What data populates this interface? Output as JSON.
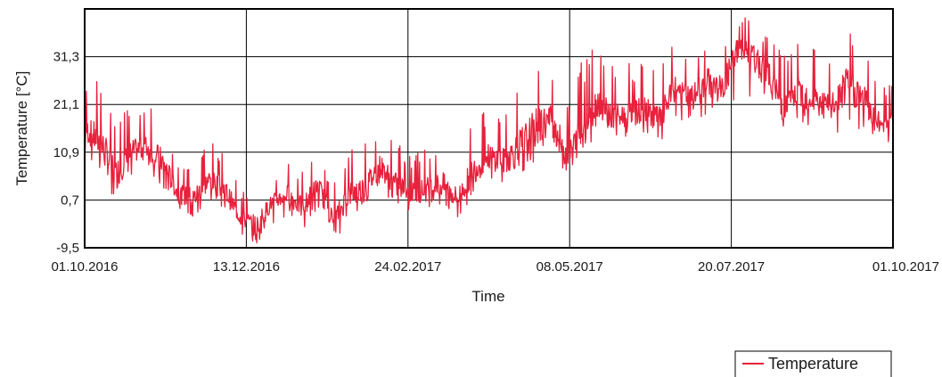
{
  "chart_data": {
    "type": "line",
    "title": "",
    "xlabel": "Time",
    "ylabel": "Temperature [°C]",
    "x_tick_labels": [
      "01.10.2016",
      "13.12.2016",
      "24.02.2017",
      "08.05.2017",
      "20.07.2017",
      "01.10.2017"
    ],
    "y_tick_labels": [
      "-9,5",
      "0,7",
      "10,9",
      "21,1",
      "31,3"
    ],
    "y_ticks": [
      -9.5,
      0.7,
      10.9,
      21.1,
      31.3
    ],
    "xlim": [
      "2016-10-01",
      "2017-10-01"
    ],
    "ylim": [
      -9.5,
      41.5
    ],
    "grid": true,
    "legend_position": "bottom-right",
    "colors": {
      "series": "#e8213c",
      "grid": "#000000",
      "frame": "#000000"
    },
    "series": [
      {
        "name": "Temperature",
        "color": "#e8213c",
        "x": [
          "2016-10-01",
          "2016-10-08",
          "2016-10-15",
          "2016-10-22",
          "2016-10-29",
          "2016-11-05",
          "2016-11-12",
          "2016-11-19",
          "2016-11-26",
          "2016-12-03",
          "2016-12-10",
          "2016-12-17",
          "2016-12-24",
          "2016-12-31",
          "2017-01-07",
          "2017-01-14",
          "2017-01-21",
          "2017-01-28",
          "2017-02-04",
          "2017-02-11",
          "2017-02-18",
          "2017-02-25",
          "2017-03-04",
          "2017-03-11",
          "2017-03-18",
          "2017-03-25",
          "2017-04-01",
          "2017-04-08",
          "2017-04-15",
          "2017-04-22",
          "2017-04-29",
          "2017-05-06",
          "2017-05-13",
          "2017-05-20",
          "2017-05-27",
          "2017-06-03",
          "2017-06-10",
          "2017-06-17",
          "2017-06-24",
          "2017-07-01",
          "2017-07-08",
          "2017-07-15",
          "2017-07-22",
          "2017-07-29",
          "2017-08-05",
          "2017-08-12",
          "2017-08-19",
          "2017-08-26",
          "2017-09-02",
          "2017-09-09",
          "2017-09-16",
          "2017-09-23",
          "2017-10-01"
        ],
        "y": [
          16,
          13,
          6,
          11,
          12,
          9,
          2,
          1,
          5,
          3,
          -3,
          -5,
          0,
          2,
          -1,
          4,
          -4,
          2,
          3,
          8,
          4,
          2,
          3,
          4,
          1,
          7,
          10,
          9,
          12,
          16,
          18,
          10,
          15,
          22,
          18,
          19,
          20,
          18,
          25,
          22,
          26,
          24,
          33,
          31,
          27,
          20,
          24,
          22,
          20,
          25,
          23,
          17,
          18
        ],
        "high": [
          24,
          27,
          21,
          20,
          22,
          19,
          9,
          10,
          13,
          12,
          3,
          5,
          5,
          9,
          7,
          12,
          4,
          11,
          16,
          17,
          14,
          10,
          13,
          15,
          9,
          19,
          21,
          20,
          29,
          33,
          31,
          25,
          32,
          34,
          31,
          30,
          30,
          29,
          35,
          33,
          37,
          36,
          41,
          39,
          38,
          32,
          36,
          35,
          31,
          38,
          36,
          27,
          25
        ],
        "low": [
          10,
          5,
          1,
          6,
          7,
          3,
          -2,
          -4,
          0,
          -2,
          -7,
          -9,
          -5,
          -3,
          -6,
          -1,
          -9,
          -4,
          -2,
          3,
          -1,
          -3,
          -2,
          -1,
          -4,
          2,
          5,
          4,
          6,
          9,
          12,
          6,
          10,
          15,
          13,
          14,
          14,
          13,
          18,
          17,
          19,
          18,
          23,
          22,
          20,
          14,
          17,
          15,
          14,
          16,
          15,
          12,
          13
        ]
      }
    ]
  }
}
